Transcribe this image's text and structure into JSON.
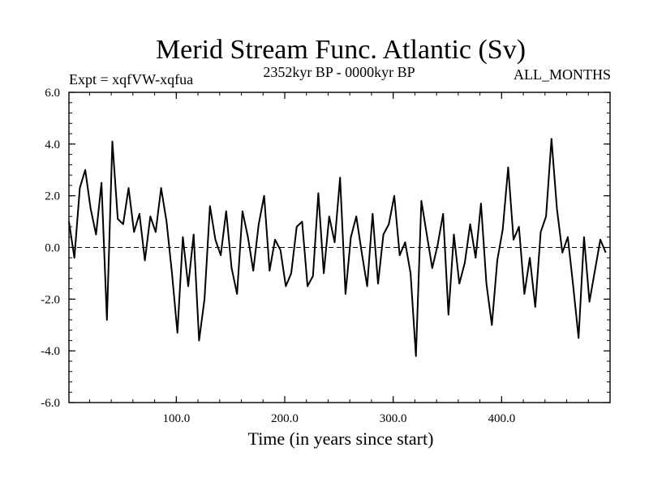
{
  "chart_data": {
    "type": "line",
    "title": "Merid Stream Func. Atlantic (Sv)",
    "subtitle_left": "Expt = xqfVW-xqfua",
    "subtitle_center": "2352kyr BP - 0000kyr BP",
    "subtitle_right": "ALL_MONTHS",
    "xlabel": "Time (in years since start)",
    "ylabel": "",
    "xlim": [
      1,
      500
    ],
    "ylim": [
      -6.0,
      6.0
    ],
    "x_ticks": [
      100,
      200,
      300,
      400
    ],
    "x_tick_labels": [
      "100.0",
      "200.0",
      "300.0",
      "400.0"
    ],
    "y_ticks": [
      -6,
      -4,
      -2,
      0,
      2,
      4,
      6
    ],
    "y_tick_labels": [
      "-6.0",
      "-4.0",
      "-2.0",
      "0.0",
      "2.0",
      "4.0",
      "6.0"
    ],
    "zero_line": true,
    "series": [
      {
        "name": "Merid Stream Func. Atlantic",
        "x_start": 1,
        "x_step": 5,
        "values": [
          1.0,
          -0.4,
          2.3,
          3.0,
          1.5,
          0.5,
          2.5,
          -2.8,
          4.1,
          1.1,
          0.9,
          2.3,
          0.6,
          1.3,
          -0.5,
          1.2,
          0.6,
          2.3,
          1.0,
          -1.0,
          -3.3,
          0.4,
          -1.5,
          0.5,
          -3.6,
          -2.0,
          1.6,
          0.3,
          -0.3,
          1.4,
          -0.8,
          -1.8,
          1.4,
          0.4,
          -0.9,
          0.9,
          2.0,
          -0.9,
          0.3,
          -0.1,
          -1.5,
          -1.0,
          0.8,
          1.0,
          -1.5,
          -1.1,
          2.1,
          -1.0,
          1.2,
          0.2,
          2.7,
          -1.8,
          0.4,
          1.2,
          -0.2,
          -1.5,
          1.3,
          -1.4,
          0.5,
          0.9,
          2.0,
          -0.3,
          0.2,
          -1.0,
          -4.2,
          1.8,
          0.5,
          -0.8,
          0.1,
          1.3,
          -2.6,
          0.5,
          -1.4,
          -0.6,
          0.9,
          -0.4,
          1.7,
          -1.4,
          -3.0,
          -0.5,
          0.7,
          3.1,
          0.3,
          0.8,
          -1.8,
          -0.4,
          -2.3,
          0.6,
          1.2,
          4.2,
          1.5,
          -0.2,
          0.4,
          -1.5,
          -3.5,
          0.4,
          -2.1,
          -0.9,
          0.3,
          -0.2
        ]
      }
    ]
  }
}
